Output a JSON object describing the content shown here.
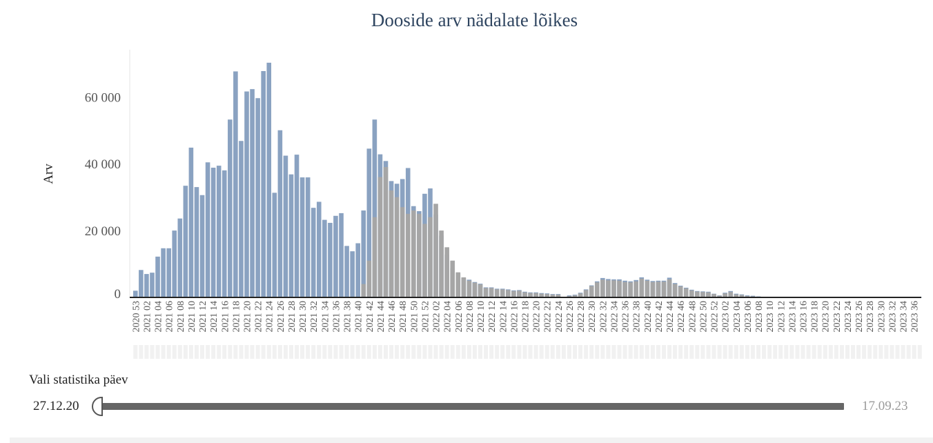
{
  "chart_data": {
    "type": "bar",
    "title": "Dooside arv nädalate lõikes",
    "xlabel": "",
    "ylabel": "Arv",
    "ylim": [
      0,
      71000
    ],
    "yticks": [
      0,
      20000,
      40000,
      60000
    ],
    "ytick_labels": [
      "0",
      "20 000",
      "40 000",
      "60 000"
    ],
    "categories": [
      "2020 53",
      "2021 01",
      "2021 02",
      "2021 03",
      "2021 04",
      "2021 05",
      "2021 06",
      "2021 07",
      "2021 08",
      "2021 09",
      "2021 10",
      "2021 11",
      "2021 12",
      "2021 13",
      "2021 14",
      "2021 15",
      "2021 16",
      "2021 17",
      "2021 18",
      "2021 19",
      "2021 20",
      "2021 21",
      "2021 22",
      "2021 23",
      "2021 24",
      "2021 25",
      "2021 26",
      "2021 27",
      "2021 28",
      "2021 29",
      "2021 30",
      "2021 31",
      "2021 32",
      "2021 33",
      "2021 34",
      "2021 35",
      "2021 36",
      "2021 37",
      "2021 38",
      "2021 39",
      "2021 40",
      "2021 41",
      "2021 42",
      "2021 43",
      "2021 44",
      "2021 45",
      "2021 46",
      "2021 47",
      "2021 48",
      "2021 49",
      "2021 50",
      "2021 51",
      "2021 52",
      "2022 01",
      "2022 02",
      "2022 03",
      "2022 04",
      "2022 05",
      "2022 06",
      "2022 07",
      "2022 08",
      "2022 09",
      "2022 10",
      "2022 11",
      "2022 12",
      "2022 13",
      "2022 14",
      "2022 15",
      "2022 16",
      "2022 17",
      "2022 18",
      "2022 19",
      "2022 20",
      "2022 21",
      "2022 22",
      "2022 23",
      "2022 24",
      "2022 25",
      "2022 26",
      "2022 27",
      "2022 28",
      "2022 29",
      "2022 30",
      "2022 31",
      "2022 32",
      "2022 33",
      "2022 34",
      "2022 35",
      "2022 36",
      "2022 37",
      "2022 38",
      "2022 39",
      "2022 40",
      "2022 41",
      "2022 42",
      "2022 43",
      "2022 44",
      "2022 45",
      "2022 46",
      "2022 47",
      "2022 48",
      "2022 49",
      "2022 50",
      "2022 51",
      "2022 52",
      "2023 01",
      "2023 02",
      "2023 03",
      "2023 04",
      "2023 05",
      "2023 06",
      "2023 07",
      "2023 08",
      "2023 09",
      "2023 10",
      "2023 11",
      "2023 12",
      "2023 13",
      "2023 14",
      "2023 15",
      "2023 16",
      "2023 17",
      "2023 18",
      "2023 19",
      "2023 20",
      "2023 21",
      "2023 22",
      "2023 23",
      "2023 24",
      "2023 25",
      "2023 26",
      "2023 27",
      "2023 28",
      "2023 29",
      "2023 30",
      "2023 31",
      "2023 32",
      "2023 33",
      "2023 34",
      "2023 35",
      "2023 36",
      "2023 37"
    ],
    "tick_every": 2,
    "series": [
      {
        "color": "#8aa2c1",
        "values": [
          2000,
          8200,
          7000,
          7400,
          12200,
          14700,
          14700,
          20000,
          23600,
          33400,
          44800,
          33000,
          30600,
          40400,
          38800,
          39400,
          38000,
          53200,
          67600,
          46800,
          61600,
          62300,
          59600,
          67700,
          70200,
          31300,
          50000,
          42400,
          36800,
          42700,
          35900,
          35900,
          26800,
          28600,
          23200,
          22300,
          24400,
          25200,
          15400,
          13800,
          16200,
          26000,
          44500,
          53200,
          42800,
          40800,
          34800,
          34000,
          35400,
          38700,
          27300,
          25800,
          31000,
          32600,
          24800,
          18500,
          12800,
          8700,
          7200,
          5800,
          5300,
          4600,
          4100,
          3000,
          3000,
          2600,
          2600,
          2400,
          2100,
          2200,
          1700,
          1500,
          1500,
          1300,
          1200,
          1000,
          1000,
          200,
          600,
          800,
          1400,
          2400,
          3600,
          4800,
          5800,
          5500,
          5400,
          5400,
          5000,
          4800,
          5200,
          6000,
          5300,
          4900,
          5000,
          5000,
          5900,
          4300,
          3500,
          2900,
          2300,
          1900,
          1800,
          1700,
          1100,
          600,
          1400,
          1900,
          1100,
          900,
          600,
          500,
          300,
          200,
          200,
          100,
          100,
          100,
          50,
          50,
          50,
          50,
          50,
          50,
          50,
          50,
          50,
          50,
          50,
          50,
          50,
          50,
          50,
          50,
          50,
          50,
          50,
          50,
          50,
          50,
          50,
          50
        ]
      },
      {
        "color": "#a6a6a6",
        "values": [
          0,
          0,
          0,
          0,
          0,
          0,
          0,
          0,
          0,
          0,
          0,
          0,
          0,
          0,
          0,
          0,
          0,
          0,
          0,
          0,
          0,
          0,
          0,
          0,
          0,
          0,
          0,
          0,
          0,
          0,
          0,
          0,
          0,
          0,
          0,
          0,
          0,
          0,
          0,
          0,
          0,
          4000,
          11000,
          24000,
          36000,
          39000,
          32000,
          30000,
          27000,
          25000,
          26000,
          25000,
          22000,
          24000,
          28000,
          20000,
          15000,
          11000,
          7500,
          6000,
          5000,
          4400,
          3900,
          2800,
          2800,
          2400,
          2400,
          2200,
          1900,
          2000,
          1500,
          1300,
          1300,
          1100,
          1000,
          800,
          800,
          100,
          400,
          600,
          1200,
          2200,
          3400,
          4500,
          5300,
          5100,
          5100,
          5000,
          4600,
          4500,
          4800,
          5600,
          5000,
          4600,
          4700,
          4700,
          5400,
          4000,
          3300,
          2700,
          2100,
          1700,
          1600,
          1500,
          1000,
          500,
          1200,
          1600,
          900,
          700,
          400,
          300,
          200,
          100,
          100,
          50,
          50,
          50,
          0,
          0,
          0,
          0,
          0,
          0,
          0,
          0,
          0,
          0,
          0,
          0,
          0,
          0,
          0,
          0,
          0,
          0,
          0,
          0,
          0,
          0,
          0,
          0
        ]
      }
    ],
    "grid": false,
    "legend": "none"
  },
  "slider": {
    "title": "Vali statistika päev",
    "start_label": "27.12.20",
    "end_label": "17.09.23",
    "position": 0.0
  }
}
